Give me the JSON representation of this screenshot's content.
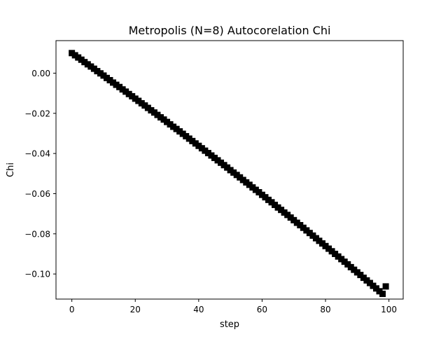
{
  "chart_data": {
    "type": "scatter",
    "title": "Metropolis (N=8) Autocorelation Chi",
    "xlabel": "step",
    "ylabel": "Chi",
    "xlim": [
      -5,
      104.5
    ],
    "ylim": [
      -0.1125,
      0.0162
    ],
    "xticks": [
      0,
      20,
      40,
      60,
      80,
      100
    ],
    "xtick_labels": [
      "0",
      "20",
      "40",
      "60",
      "80",
      "100"
    ],
    "yticks": [
      0.0,
      -0.02,
      -0.04,
      -0.06,
      -0.08,
      -0.1
    ],
    "ytick_labels": [
      "0.00",
      "−0.02",
      "−0.04",
      "−0.06",
      "−0.08",
      "−0.10"
    ],
    "grid": false,
    "legend": "none",
    "marker": "square",
    "color": "#000000",
    "series": [
      {
        "x": [
          0,
          1,
          2,
          3,
          4,
          5,
          6,
          7,
          8,
          9,
          10,
          11,
          12,
          13,
          14,
          15,
          16,
          17,
          18,
          19,
          20,
          21,
          22,
          23,
          24,
          25,
          26,
          27,
          28,
          29,
          30,
          31,
          32,
          33,
          34,
          35,
          36,
          37,
          38,
          39,
          40,
          41,
          42,
          43,
          44,
          45,
          46,
          47,
          48,
          49,
          50,
          51,
          52,
          53,
          54,
          55,
          56,
          57,
          58,
          59,
          60,
          61,
          62,
          63,
          64,
          65,
          66,
          67,
          68,
          69,
          70,
          71,
          72,
          73,
          74,
          75,
          76,
          77,
          78,
          79,
          80,
          81,
          82,
          83,
          84,
          85,
          86,
          87,
          88,
          89,
          90,
          91,
          92,
          93,
          94,
          95,
          96,
          97,
          98,
          99
        ],
        "y": [
          0.01,
          0.0089,
          0.0078,
          0.0067,
          0.0055,
          0.0044,
          0.0033,
          0.0022,
          0.001,
          -0.0001,
          -0.0012,
          -0.0024,
          -0.0035,
          -0.0047,
          -0.0058,
          -0.0069,
          -0.0081,
          -0.0092,
          -0.0104,
          -0.0115,
          -0.0127,
          -0.0138,
          -0.015,
          -0.0161,
          -0.0173,
          -0.0185,
          -0.0196,
          -0.0208,
          -0.022,
          -0.0231,
          -0.0243,
          -0.0255,
          -0.0267,
          -0.0278,
          -0.029,
          -0.0302,
          -0.0314,
          -0.0326,
          -0.0338,
          -0.035,
          -0.0362,
          -0.0374,
          -0.0386,
          -0.0398,
          -0.041,
          -0.0422,
          -0.0434,
          -0.0446,
          -0.0458,
          -0.047,
          -0.0483,
          -0.0495,
          -0.0507,
          -0.0519,
          -0.0532,
          -0.0544,
          -0.0556,
          -0.0569,
          -0.0581,
          -0.0593,
          -0.0606,
          -0.0618,
          -0.0631,
          -0.0643,
          -0.0656,
          -0.0669,
          -0.0681,
          -0.0694,
          -0.0706,
          -0.0719,
          -0.0732,
          -0.0745,
          -0.0757,
          -0.077,
          -0.0783,
          -0.0796,
          -0.0809,
          -0.0822,
          -0.0835,
          -0.0848,
          -0.0861,
          -0.0874,
          -0.0887,
          -0.09,
          -0.0913,
          -0.0926,
          -0.0939,
          -0.0952,
          -0.0966,
          -0.0979,
          -0.0992,
          -0.1005,
          -0.1019,
          -0.1032,
          -0.1045,
          -0.1059,
          -0.1072,
          -0.1086,
          -0.1099,
          -0.1062
        ]
      }
    ]
  }
}
